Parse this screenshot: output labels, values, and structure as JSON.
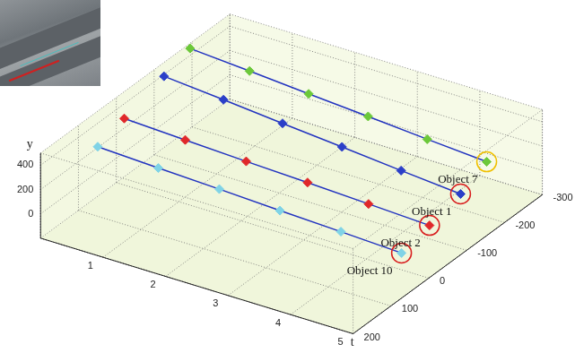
{
  "chart_data": {
    "type": "line3d",
    "t_label": "t",
    "y_label": "y",
    "tlim": [
      0,
      5
    ],
    "tticks": [
      1,
      2,
      3,
      4,
      5
    ],
    "xlim": [
      -300,
      200
    ],
    "xticks": [
      200,
      100,
      0,
      -100,
      -200,
      -300
    ],
    "ylim": [
      -200,
      500
    ],
    "yticks": [
      0,
      200,
      400
    ],
    "grid": true,
    "marker": "diamond",
    "series": [
      {
        "name": "Object 10",
        "color": "#7fd3e6",
        "highlight": "#d81e1e",
        "t": [
          0,
          1,
          2,
          3,
          4,
          5
        ],
        "x": [
          49,
          54,
          58,
          63,
          67,
          72
        ],
        "y": [
          207,
          200,
          193,
          185,
          178,
          171
        ]
      },
      {
        "name": "Object 2",
        "color": "#e0282a",
        "highlight": "#d81e1e",
        "t": [
          0,
          1,
          2,
          3,
          4,
          5
        ],
        "x": [
          -21,
          -17,
          -13,
          -10,
          -6,
          -2
        ],
        "y": [
          279,
          269,
          259,
          249,
          239,
          229
        ]
      },
      {
        "name": "Object 1",
        "color": "#2b3fc8",
        "highlight": "#d81e1e",
        "t": [
          0,
          1,
          2,
          3,
          4,
          5
        ],
        "x": [
          -126,
          -118,
          -109,
          -101,
          -92,
          -84
        ],
        "y": [
          386,
          369,
          352,
          334,
          317,
          300
        ]
      },
      {
        "name": "Object 7",
        "color": "#6cc83a",
        "highlight": "#f0c000",
        "t": [
          0,
          1,
          2,
          3,
          4,
          5
        ],
        "x": [
          -195,
          -187,
          -178,
          -170,
          -161,
          -153
        ],
        "y": [
          457,
          447,
          437,
          427,
          417,
          407
        ]
      }
    ]
  }
}
